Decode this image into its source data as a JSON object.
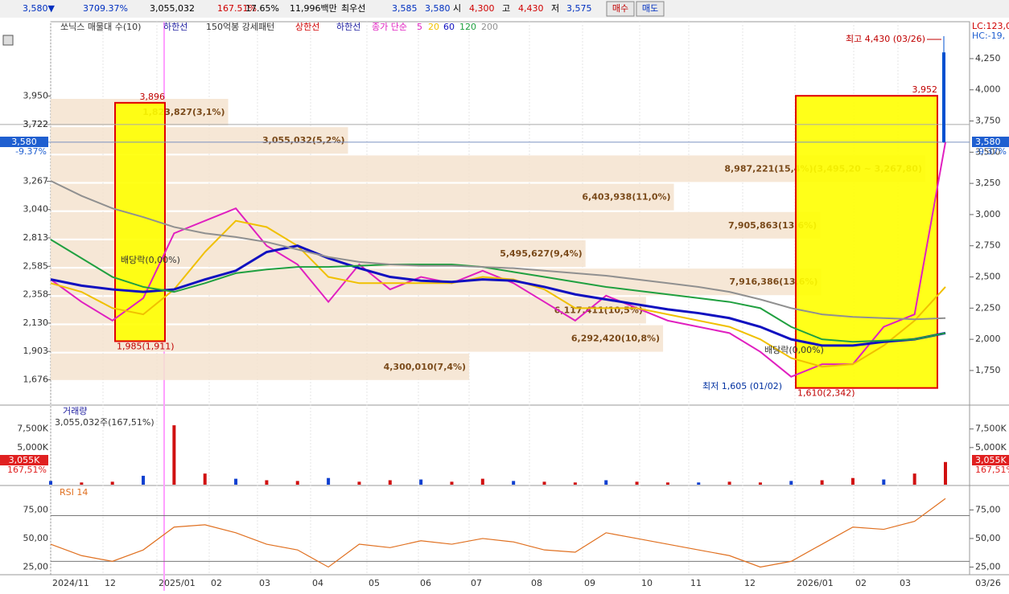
{
  "top_bar": {
    "items": [
      "3,580▼",
      "370",
      "-9.37%",
      "3,055,032",
      "167.51%",
      "17.65%",
      "11,996백만",
      "최우선",
      "3,585",
      "3,580",
      "시",
      "4,300",
      "고",
      "4,430",
      "저",
      "3,575"
    ],
    "buy": "매수",
    "sell": "매도"
  },
  "legend": {
    "items": [
      "쏘닉스 매물대 수(10)",
      "하한선",
      "150억봉 강세패턴",
      "상한선",
      "하한선"
    ],
    "ma_prefix": "종가 단순"
  },
  "right_labels": [
    "LC:123,0",
    "HC:-19,"
  ],
  "price_panel": {
    "ylim": [
      1479,
      4546
    ],
    "yticks_left": [
      {
        "value": 3950,
        "label": "3,950"
      },
      {
        "value": 3722,
        "label": "3,722"
      },
      {
        "value": 3267,
        "label": "3,267"
      },
      {
        "value": 3040,
        "label": "3,040"
      },
      {
        "value": 2813,
        "label": "2,813"
      },
      {
        "value": 2585,
        "label": "2,585"
      },
      {
        "value": 2358,
        "label": "2,358"
      },
      {
        "value": 2130,
        "label": "2,130"
      },
      {
        "value": 1903,
        "label": "1,903"
      },
      {
        "value": 1676,
        "label": "1,676"
      }
    ],
    "yticks_right": [
      {
        "value": 4250,
        "label": "4,250"
      },
      {
        "value": 4000,
        "label": "4,000"
      },
      {
        "value": 3750,
        "label": "3,750"
      },
      {
        "value": 3500,
        "label": "3,500"
      },
      {
        "value": 3250,
        "label": "3,250"
      },
      {
        "value": 3000,
        "label": "3,000"
      },
      {
        "value": 2750,
        "label": "2,750"
      },
      {
        "value": 2500,
        "label": "2,500"
      },
      {
        "value": 2250,
        "label": "2,250"
      },
      {
        "value": 2000,
        "label": "2,000"
      },
      {
        "value": 1750,
        "label": "1,750"
      }
    ],
    "series": [
      {
        "name": "5",
        "color": "#e020c0",
        "values": [
          2480,
          2300,
          2150,
          2330,
          2850,
          2950,
          3050,
          2750,
          2600,
          2300,
          2600,
          2400,
          2500,
          2450,
          2550,
          2450,
          2300,
          2150,
          2350,
          2250,
          2150,
          2100,
          2050,
          1900,
          1700,
          1800,
          1800,
          2100,
          2200,
          3580
        ]
      },
      {
        "name": "20",
        "color": "#f0c000",
        "values": [
          2450,
          2380,
          2250,
          2200,
          2400,
          2700,
          2950,
          2900,
          2750,
          2500,
          2450,
          2450,
          2450,
          2450,
          2500,
          2480,
          2400,
          2250,
          2250,
          2250,
          2200,
          2150,
          2100,
          2000,
          1850,
          1780,
          1800,
          1950,
          2150,
          2420
        ]
      },
      {
        "name": "60",
        "color": "#1010c0",
        "values": [
          2480,
          2430,
          2400,
          2380,
          2400,
          2480,
          2550,
          2700,
          2750,
          2650,
          2570,
          2500,
          2470,
          2460,
          2480,
          2470,
          2420,
          2360,
          2320,
          2280,
          2240,
          2210,
          2170,
          2100,
          2000,
          1950,
          1950,
          1980,
          2000,
          2050
        ]
      },
      {
        "name": "120",
        "color": "#20a040",
        "values": [
          2800,
          2650,
          2500,
          2420,
          2380,
          2450,
          2530,
          2560,
          2580,
          2580,
          2590,
          2600,
          2600,
          2600,
          2580,
          2540,
          2500,
          2460,
          2420,
          2390,
          2360,
          2330,
          2300,
          2250,
          2100,
          2000,
          1980,
          1990,
          2000,
          2050
        ]
      },
      {
        "name": "200",
        "color": "#909090",
        "values": [
          3270,
          3150,
          3050,
          2980,
          2900,
          2850,
          2820,
          2780,
          2720,
          2660,
          2620,
          2600,
          2590,
          2590,
          2580,
          2570,
          2550,
          2530,
          2510,
          2480,
          2450,
          2420,
          2380,
          2320,
          2250,
          2200,
          2180,
          2170,
          2160,
          2170
        ]
      }
    ],
    "volume_profile": {
      "values": [
        1823827,
        3055032,
        8987221,
        6403938,
        7905863,
        5495627,
        7916386,
        6117411,
        6292420,
        4300010
      ],
      "value_labels": [
        "1,823,827(3,1%)",
        "3,055,032(5,2%)",
        "8,987,221(15,4%)(3,495,20 ~ 3,267,80)",
        "6,403,938(11,0%)",
        "7,905,863(13,6%)",
        "5,495,627(9,4%)",
        "7,916,386(13,6%)",
        "6,117,411(10,5%)",
        "6,292,420(10,8%)",
        "4,300,010(7,4%)"
      ]
    },
    "boxes": [
      {
        "high": {
          "value": 3896,
          "label": "3,896"
        },
        "low": {
          "value": 1985,
          "label": "1,985(1,911)"
        }
      },
      {
        "high": {
          "value": 3952,
          "label": "3,952"
        },
        "low": {
          "value": 1610,
          "label": "1,610(2,342)"
        }
      }
    ],
    "last_candle": {
      "open": 4300,
      "high": 4430,
      "low": 3575,
      "close": 3580
    },
    "max_label": "최고 4,430 (03/26)",
    "min_label": "최저 1,605 (01/02)",
    "dividend": [
      "배당락(0,00%)",
      "배당락(0,00%)"
    ],
    "current": {
      "value": 3580,
      "label": "3,580",
      "change": "-9.37%"
    },
    "ref_line": {
      "value": 3722,
      "label": "3,722"
    }
  },
  "volume_panel": {
    "title": "거래량",
    "info": "3,055,032주(167,51%)",
    "ylim": [
      0,
      10500
    ],
    "yticks": [
      {
        "value": 7500,
        "label": "7,500K"
      },
      {
        "value": 5000,
        "label": "5,000K"
      }
    ],
    "values": [
      500,
      300,
      400,
      1200,
      8000,
      1500,
      800,
      600,
      500,
      900,
      400,
      600,
      700,
      400,
      800,
      500,
      400,
      300,
      600,
      400,
      300,
      300,
      400,
      300,
      500,
      600,
      900,
      700,
      1500,
      3055
    ],
    "current_label": "3,055K",
    "current_change": "167,51%"
  },
  "rsi_panel": {
    "title": "RSI 14",
    "ylim": [
      19,
      95
    ],
    "levels": [
      70,
      30
    ],
    "yticks": [
      {
        "value": 75,
        "label": "75,00"
      },
      {
        "value": 50,
        "label": "50,00"
      },
      {
        "value": 25,
        "label": "25,00"
      }
    ],
    "values": [
      45,
      35,
      30,
      40,
      60,
      62,
      55,
      45,
      40,
      25,
      45,
      42,
      48,
      45,
      50,
      47,
      40,
      38,
      55,
      50,
      45,
      40,
      35,
      25,
      30,
      45,
      60,
      58,
      65,
      85
    ]
  },
  "x_labels": [
    "2024/11",
    "12",
    "2025/01",
    "02",
    "03",
    "04",
    "05",
    "06",
    "07",
    "08",
    "09",
    "10",
    "11",
    "12",
    "2026/01",
    "02",
    "03",
    "03/26"
  ]
}
